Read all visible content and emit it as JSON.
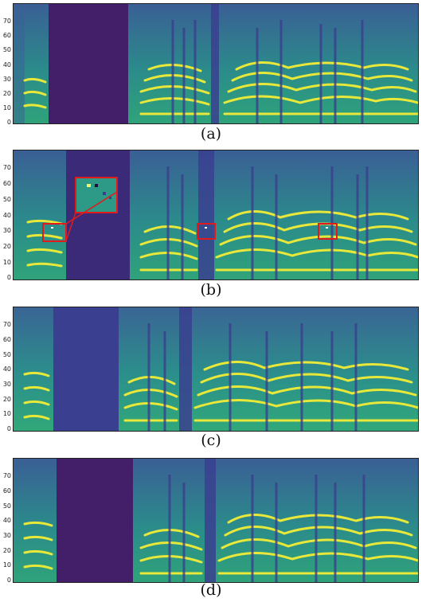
{
  "panels": [
    {
      "caption": "(a)",
      "ticks": [
        "0",
        "10",
        "20",
        "30",
        "40",
        "50",
        "60",
        "70"
      ]
    },
    {
      "caption": "(b)",
      "ticks": [
        "0",
        "10",
        "20",
        "30",
        "40",
        "50",
        "60",
        "70"
      ]
    },
    {
      "caption": "(c)",
      "ticks": [
        "0",
        "10",
        "20",
        "30",
        "40",
        "50",
        "60",
        "70"
      ]
    },
    {
      "caption": "(d)",
      "ticks": [
        "0",
        "10",
        "20",
        "30",
        "40",
        "50",
        "60",
        "70"
      ]
    }
  ],
  "colors": {
    "background": "#3a3f8f",
    "dark_band": "#431f6a",
    "harmonic_bright": "#e8e83a",
    "harmonic_mid": "#3fbf78",
    "body": "#2a8b8a",
    "highlight_box": "#e11b1b"
  }
}
